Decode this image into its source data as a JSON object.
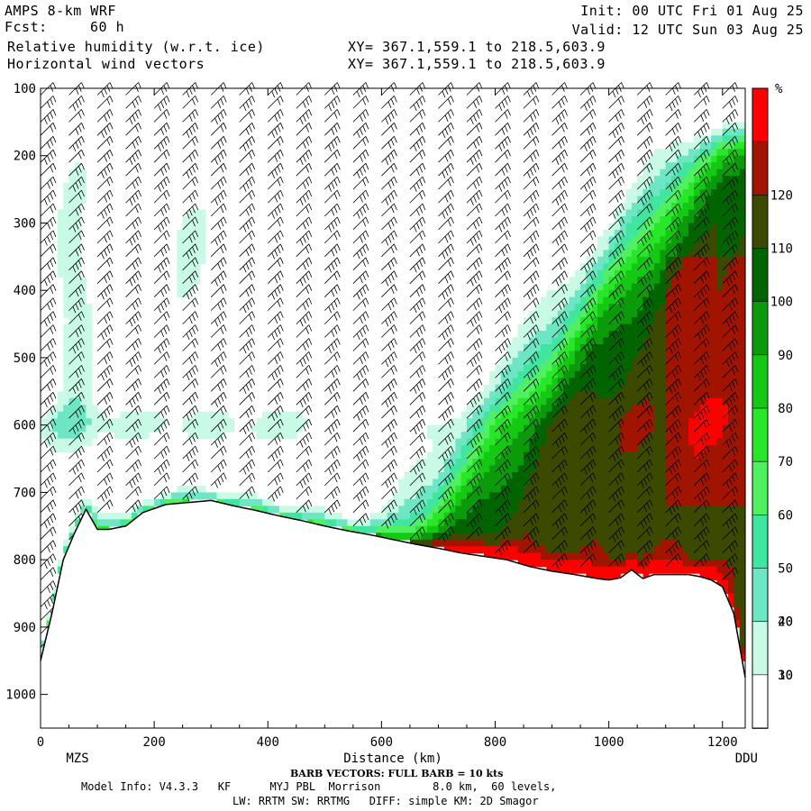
{
  "header": {
    "model": "AMPS 8-km WRF",
    "forecast_label": "Fcst:",
    "forecast_hours": "60 h",
    "field1": "Relative humidity (w.r.t. ice)",
    "field2": "Horizontal wind vectors",
    "init": "Init: 00 UTC Fri 01 Aug 25",
    "valid": "Valid: 12 UTC Sun 03 Aug 25",
    "xy1": "XY= 367.1,559.1 to 218.5,603.9",
    "xy2": "XY= 367.1,559.1 to 218.5,603.9"
  },
  "footer": {
    "barb_note": "BARB VECTORS: FULL BARB = 10 kts",
    "model_info": "Model Info: V4.3.3   KF      MYJ PBL  Morrison        8.0 km,  60 levels,",
    "physics": "LW: RRTM SW: RRTMG   DIFF: simple KM: 2D Smagor"
  },
  "colors": {
    "rh_10": "#ffffff",
    "rh_30": "#c8fae6",
    "rh_40": "#6ee6c4",
    "rh_50": "#40e6a0",
    "rh_60": "#50f060",
    "rh_70": "#28e628",
    "rh_80": "#14c814",
    "rh_90": "#0a9a0a",
    "rh_100": "#006400",
    "rh_110": "#3c4a00",
    "rh_120": "#a01400",
    "rh_130": "#ff0000",
    "terrain_line": "#000000",
    "barb": "#000000"
  },
  "chart_data": {
    "type": "heatmap",
    "title": "Relative humidity (w.r.t. ice)",
    "xlabel": "Distance (km)",
    "ylabel": "",
    "xlim": [
      0,
      1240
    ],
    "ylim": [
      1050,
      100
    ],
    "x_ticks": [
      0,
      200,
      400,
      600,
      800,
      1000,
      1200
    ],
    "y_ticks": [
      100,
      200,
      300,
      400,
      500,
      600,
      700,
      800,
      900,
      1000
    ],
    "endpoint_left": "MZS",
    "endpoint_right": "DDU",
    "colorbar": {
      "unit": "%",
      "levels": [
        10,
        20,
        30,
        40,
        50,
        60,
        70,
        80,
        90,
        100,
        110,
        120
      ],
      "bins": [
        {
          "min": 0,
          "max": 30,
          "color": "#ffffff"
        },
        {
          "min": 30,
          "max": 40,
          "color": "#c8fae6"
        },
        {
          "min": 40,
          "max": 50,
          "color": "#6ee6c4"
        },
        {
          "min": 50,
          "max": 60,
          "color": "#40e6a0"
        },
        {
          "min": 60,
          "max": 70,
          "color": "#50f060"
        },
        {
          "min": 70,
          "max": 80,
          "color": "#28e628"
        },
        {
          "min": 80,
          "max": 90,
          "color": "#14c814"
        },
        {
          "min": 90,
          "max": 100,
          "color": "#0a9a0a"
        },
        {
          "min": 100,
          "max": 110,
          "color": "#006400"
        },
        {
          "min": 110,
          "max": 120,
          "color": "#3c4a00"
        },
        {
          "min": 120,
          "max": 130,
          "color": "#a01400"
        },
        {
          "min": 130,
          "max": 140,
          "color": "#ff0000"
        }
      ]
    },
    "terrain_surface_pressure": {
      "x": [
        0,
        20,
        40,
        60,
        80,
        100,
        120,
        150,
        180,
        220,
        260,
        300,
        340,
        380,
        420,
        460,
        500,
        540,
        580,
        620,
        660,
        700,
        740,
        780,
        820,
        860,
        900,
        940,
        980,
        1000,
        1020,
        1040,
        1060,
        1080,
        1100,
        1140,
        1160,
        1180,
        1200,
        1220,
        1240
      ],
      "p": [
        950,
        880,
        800,
        760,
        725,
        755,
        755,
        750,
        730,
        718,
        715,
        712,
        720,
        727,
        735,
        742,
        750,
        757,
        763,
        770,
        777,
        783,
        790,
        795,
        800,
        810,
        817,
        822,
        828,
        830,
        827,
        815,
        828,
        822,
        822,
        822,
        825,
        830,
        840,
        880,
        975
      ]
    },
    "barb_columns_km": [
      0,
      50,
      100,
      150,
      200,
      250,
      300,
      350,
      400,
      450,
      500,
      550,
      600,
      650,
      700,
      750,
      800,
      850,
      900,
      950,
      1000,
      1050,
      1100,
      1150,
      1200
    ]
  }
}
